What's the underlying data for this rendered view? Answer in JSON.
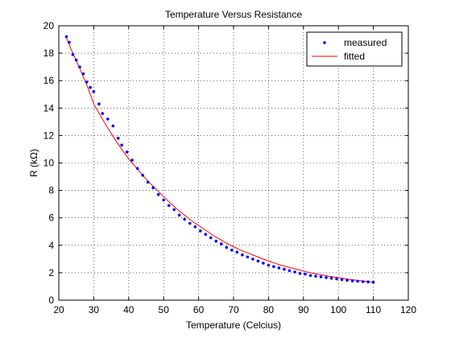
{
  "chart_data": {
    "type": "line",
    "title": "Temperature Versus Resistance",
    "xlabel": "Temperature (Celcius)",
    "ylabel": "R (kΩ)",
    "xlim": [
      20,
      120
    ],
    "ylim": [
      0,
      20
    ],
    "xticks": [
      20,
      30,
      40,
      50,
      60,
      70,
      80,
      90,
      100,
      110,
      120
    ],
    "yticks": [
      0,
      2,
      4,
      6,
      8,
      10,
      12,
      14,
      16,
      18,
      20
    ],
    "grid": true,
    "legend_position": "top-right",
    "series": [
      {
        "name": "measured",
        "style": "markers",
        "color": "#0000ff",
        "x": [
          22.2,
          23.0,
          24.0,
          25.0,
          26.0,
          27.0,
          28.0,
          29.0,
          30.0,
          31.5,
          32.5,
          34.0,
          35.5,
          37.0,
          38.0,
          39.5,
          41.0,
          42.5,
          44.0,
          45.5,
          47.0,
          48.5,
          50.0,
          51.5,
          53.0,
          54.5,
          56.0,
          57.5,
          59.0,
          60.5,
          62.0,
          63.5,
          65.0,
          66.5,
          68.0,
          69.5,
          71.0,
          72.5,
          74.0,
          75.5,
          77.0,
          78.5,
          80.0,
          81.5,
          83.0,
          84.5,
          86.0,
          87.5,
          89.0,
          90.5,
          92.0,
          93.5,
          95.0,
          96.5,
          98.0,
          99.5,
          101.0,
          102.5,
          104.0,
          105.5,
          107.0,
          108.5,
          110.0
        ],
        "y": [
          19.2,
          18.8,
          17.9,
          17.5,
          17.0,
          16.5,
          15.9,
          15.5,
          15.2,
          14.3,
          13.6,
          13.2,
          12.7,
          11.8,
          11.3,
          10.8,
          10.2,
          9.6,
          9.1,
          8.6,
          8.2,
          7.7,
          7.3,
          6.9,
          6.6,
          6.2,
          5.9,
          5.6,
          5.35,
          5.05,
          4.8,
          4.55,
          4.3,
          4.1,
          3.85,
          3.65,
          3.5,
          3.3,
          3.15,
          3.0,
          2.85,
          2.7,
          2.55,
          2.45,
          2.35,
          2.25,
          2.15,
          2.05,
          1.95,
          1.9,
          1.8,
          1.75,
          1.7,
          1.65,
          1.6,
          1.55,
          1.5,
          1.45,
          1.4,
          1.38,
          1.35,
          1.33,
          1.3
        ]
      },
      {
        "name": "fitted",
        "style": "line",
        "color": "#ff0000",
        "x": [
          22,
          24,
          26,
          28,
          30,
          32,
          34,
          36,
          38,
          40,
          42,
          44,
          46,
          48,
          50,
          52,
          54,
          56,
          58,
          60,
          62,
          64,
          66,
          68,
          70,
          72,
          74,
          76,
          78,
          80,
          82,
          84,
          86,
          88,
          90,
          92,
          94,
          96,
          98,
          100,
          102,
          104,
          106,
          108,
          110
        ],
        "y": [
          19.2,
          18.0,
          16.9,
          15.7,
          14.3,
          13.4,
          12.55,
          11.75,
          11.0,
          10.3,
          9.7,
          9.1,
          8.55,
          8.05,
          7.55,
          7.05,
          6.6,
          6.2,
          5.8,
          5.45,
          5.1,
          4.75,
          4.45,
          4.15,
          3.9,
          3.65,
          3.45,
          3.25,
          3.05,
          2.85,
          2.68,
          2.52,
          2.38,
          2.25,
          2.12,
          2.0,
          1.9,
          1.8,
          1.72,
          1.64,
          1.56,
          1.49,
          1.43,
          1.37,
          1.3
        ]
      }
    ]
  }
}
